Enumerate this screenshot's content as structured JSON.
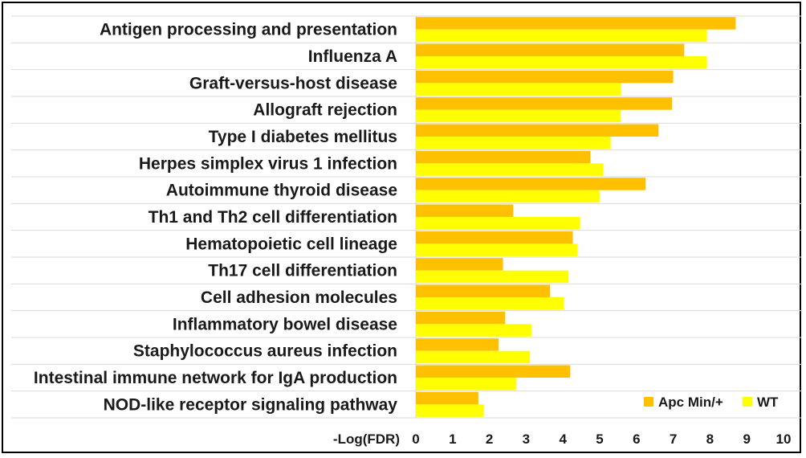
{
  "chart_data": {
    "type": "bar",
    "orientation": "horizontal",
    "categories": [
      "Antigen processing and presentation",
      "Influenza A",
      "Graft-versus-host disease",
      "Allograft rejection",
      "Type I diabetes mellitus",
      "Herpes simplex virus 1 infection",
      "Autoimmune thyroid disease",
      "Th1 and Th2 cell differentiation",
      "Hematopoietic cell lineage",
      "Th17 cell differentiation",
      "Cell adhesion molecules",
      "Inflammatory bowel disease",
      "Staphylococcus aureus infection",
      "Intestinal immune network for IgA production",
      "NOD-like receptor signaling pathway"
    ],
    "series": [
      {
        "name": "Apc Min/+",
        "color": "#FFC000",
        "values": [
          8.7,
          7.3,
          7.0,
          6.97,
          6.6,
          4.75,
          6.25,
          2.65,
          4.27,
          2.37,
          3.65,
          2.43,
          2.25,
          4.2,
          1.7
        ]
      },
      {
        "name": "WT",
        "color": "#FFFF00",
        "values": [
          7.92,
          7.92,
          5.58,
          5.57,
          5.3,
          5.1,
          5.0,
          4.47,
          4.4,
          4.15,
          4.03,
          3.15,
          3.1,
          2.73,
          1.85
        ]
      }
    ],
    "xlabel": "-Log(FDR)",
    "xlim": [
      0,
      10
    ],
    "xticks": [
      "0",
      "1",
      "2",
      "3",
      "4",
      "5",
      "6",
      "7",
      "8",
      "9",
      "10"
    ],
    "grid": "horizontal",
    "legend_position": "bottom-right"
  }
}
